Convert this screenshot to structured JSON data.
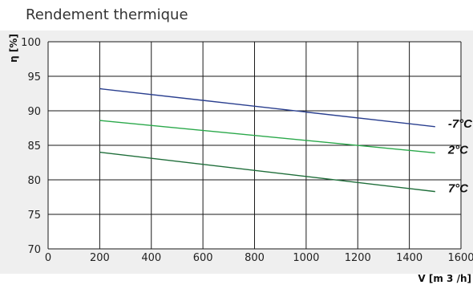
{
  "chart_data": {
    "type": "line",
    "title": "Rendement thermique",
    "xlabel": "V [m 3 /h]",
    "ylabel": "η [%]",
    "xlim": [
      0,
      1600
    ],
    "ylim": [
      70,
      100
    ],
    "xticks": [
      0,
      200,
      400,
      600,
      800,
      1000,
      1200,
      1400,
      1600
    ],
    "yticks": [
      70,
      75,
      80,
      85,
      90,
      95,
      100
    ],
    "grid": true,
    "series": [
      {
        "name": "-7°C",
        "color": "#2a3f8f",
        "x": [
          200,
          1500
        ],
        "y": [
          93.2,
          87.7
        ]
      },
      {
        "name": "2°C",
        "color": "#2aa84a",
        "x": [
          200,
          1500
        ],
        "y": [
          88.6,
          83.9
        ]
      },
      {
        "name": "7°C",
        "color": "#1f6e3a",
        "x": [
          200,
          1500
        ],
        "y": [
          84.0,
          78.3
        ]
      }
    ]
  }
}
